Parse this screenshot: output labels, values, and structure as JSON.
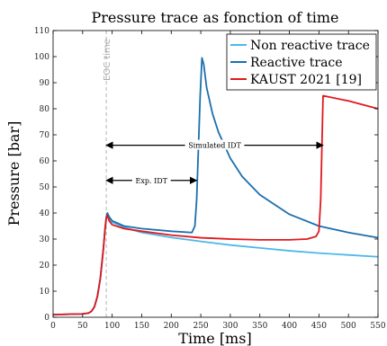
{
  "chart_data": {
    "type": "line",
    "title": "Pressure trace as fonction of time",
    "xlabel": "Time [ms]",
    "ylabel": "Pressure [bar]",
    "xlim": [
      0,
      550
    ],
    "ylim": [
      0,
      110
    ],
    "xticks": [
      0,
      50,
      100,
      150,
      200,
      250,
      300,
      350,
      400,
      450,
      500,
      550
    ],
    "yticks": [
      0,
      10,
      20,
      30,
      40,
      50,
      60,
      70,
      80,
      90,
      100,
      110
    ],
    "grid": false,
    "legend_position": "top-right",
    "series": [
      {
        "name": "Non reactive trace",
        "color": "#4db8e8",
        "x": [
          0,
          50,
          60,
          65,
          70,
          75,
          80,
          85,
          88,
          90,
          92,
          95,
          100,
          120,
          150,
          200,
          250,
          300,
          350,
          400,
          450,
          500,
          550
        ],
        "y": [
          1,
          1.3,
          1.6,
          2.3,
          4,
          8,
          15,
          26,
          34,
          38,
          39.5,
          38,
          36.5,
          34.5,
          32.5,
          30.6,
          29.1,
          27.7,
          26.6,
          25.5,
          24.6,
          23.9,
          23.2
        ]
      },
      {
        "name": "Reactive trace",
        "color": "#1b6fae",
        "x": [
          0,
          50,
          60,
          65,
          70,
          75,
          80,
          85,
          88,
          90,
          92,
          95,
          100,
          120,
          150,
          200,
          235,
          240,
          243,
          246,
          249,
          252,
          255,
          260,
          270,
          280,
          300,
          320,
          350,
          400,
          450,
          500,
          550
        ],
        "y": [
          1,
          1.3,
          1.6,
          2.3,
          4,
          8,
          15,
          26,
          34,
          38.5,
          40,
          38.5,
          37,
          35,
          34,
          33,
          32.5,
          35,
          45,
          65,
          85,
          99.5,
          97,
          88,
          78,
          71,
          61,
          54,
          47,
          39.5,
          35,
          32.5,
          30.5
        ]
      },
      {
        "name": "KAUST 2021 [19]",
        "color": "#e0191e",
        "x": [
          0,
          50,
          60,
          65,
          70,
          75,
          80,
          85,
          88,
          90,
          92,
          95,
          100,
          120,
          150,
          200,
          250,
          300,
          350,
          400,
          430,
          445,
          450,
          453,
          455,
          457,
          500,
          550
        ],
        "y": [
          1,
          1.3,
          1.6,
          2.3,
          4,
          8,
          15,
          26,
          34,
          38,
          39,
          37,
          35.5,
          34,
          33,
          31.5,
          30.5,
          30,
          29.7,
          29.7,
          30,
          31,
          33,
          45,
          65,
          85,
          83,
          80
        ]
      }
    ],
    "annotations": [
      {
        "text": "EOC time",
        "x": 90
      },
      {
        "text": "Simulated IDT",
        "x_start": 90,
        "x_end": 457,
        "y": 66
      },
      {
        "text": "Exp. IDT",
        "x_start": 90,
        "x_end": 243,
        "y": 52.5
      }
    ]
  }
}
